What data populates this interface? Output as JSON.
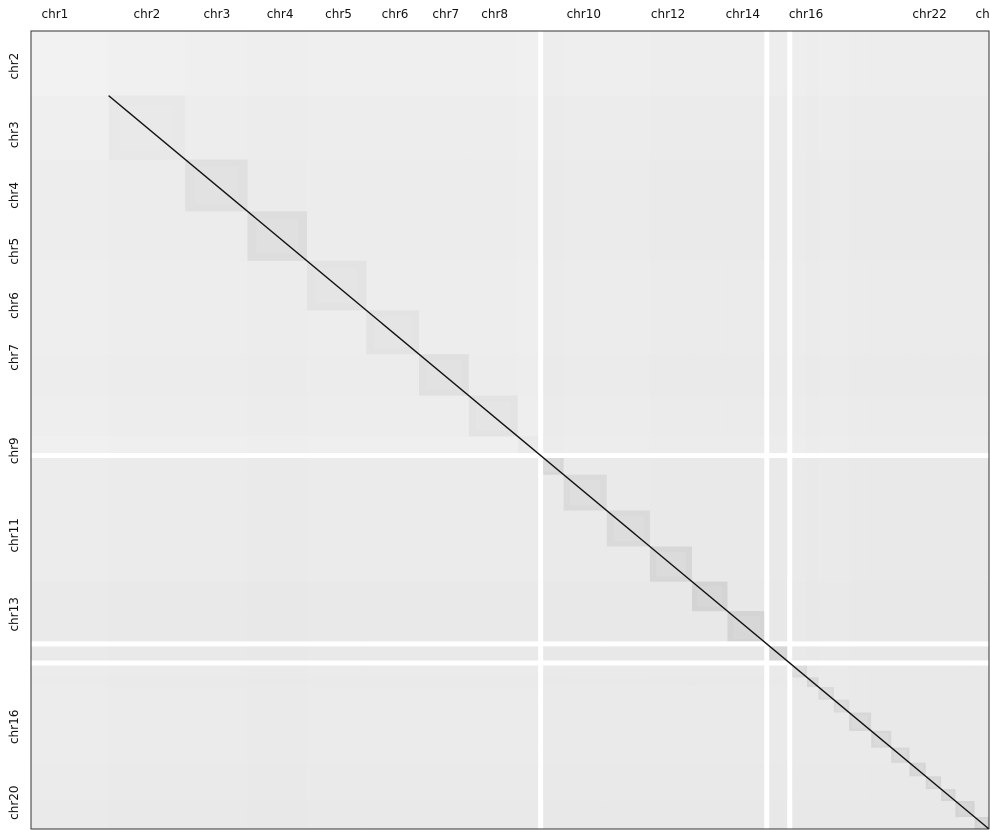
{
  "chart_data": {
    "type": "heatmap",
    "title": "",
    "colormap": {
      "low": "#ffffff",
      "high": "#000000",
      "name": "greys"
    },
    "top_labels": [
      {
        "label": "chr1",
        "pos": 0.025
      },
      {
        "label": "chr2",
        "pos": 0.121
      },
      {
        "label": "chr3",
        "pos": 0.194
      },
      {
        "label": "chr4",
        "pos": 0.26
      },
      {
        "label": "chr5",
        "pos": 0.321
      },
      {
        "label": "chr6",
        "pos": 0.38
      },
      {
        "label": "chr7",
        "pos": 0.433
      },
      {
        "label": "chr8",
        "pos": 0.484
      },
      {
        "label": "chr10",
        "pos": 0.577
      },
      {
        "label": "chr12",
        "pos": 0.665
      },
      {
        "label": "chr14",
        "pos": 0.743
      },
      {
        "label": "chr16",
        "pos": 0.809
      },
      {
        "label": "chr22",
        "pos": 0.938
      },
      {
        "label": "chr`",
        "pos": 0.999
      }
    ],
    "left_labels": [
      {
        "label": "chr2",
        "pos": 0.044
      },
      {
        "label": "chr3",
        "pos": 0.13
      },
      {
        "label": "chr4",
        "pos": 0.206
      },
      {
        "label": "chr5",
        "pos": 0.276
      },
      {
        "label": "chr6",
        "pos": 0.344
      },
      {
        "label": "chr7",
        "pos": 0.409
      },
      {
        "label": "chr9",
        "pos": 0.526
      },
      {
        "label": "chr11",
        "pos": 0.632
      },
      {
        "label": "chr13",
        "pos": 0.731
      },
      {
        "label": "chr16",
        "pos": 0.872
      },
      {
        "label": "chr20",
        "pos": 0.967
      }
    ],
    "diagonal_blocks": [
      {
        "start": 0.081,
        "end": 0.161,
        "intensity": 0.35
      },
      {
        "start": 0.161,
        "end": 0.226,
        "intensity": 0.55
      },
      {
        "start": 0.226,
        "end": 0.288,
        "intensity": 0.6
      },
      {
        "start": 0.288,
        "end": 0.35,
        "intensity": 0.45
      },
      {
        "start": 0.35,
        "end": 0.405,
        "intensity": 0.45
      },
      {
        "start": 0.405,
        "end": 0.457,
        "intensity": 0.55
      },
      {
        "start": 0.457,
        "end": 0.508,
        "intensity": 0.45
      },
      {
        "start": 0.508,
        "end": 0.532,
        "intensity": 0.3
      },
      {
        "start": 0.532,
        "end": 0.556,
        "intensity": 0.75
      },
      {
        "start": 0.556,
        "end": 0.601,
        "intensity": 0.65
      },
      {
        "start": 0.601,
        "end": 0.646,
        "intensity": 0.7
      },
      {
        "start": 0.646,
        "end": 0.69,
        "intensity": 0.75
      },
      {
        "start": 0.69,
        "end": 0.727,
        "intensity": 0.85
      },
      {
        "start": 0.727,
        "end": 0.768,
        "intensity": 0.85
      },
      {
        "start": 0.768,
        "end": 0.792,
        "intensity": 0.85
      },
      {
        "start": 0.792,
        "end": 0.81,
        "intensity": 0.7
      },
      {
        "start": 0.81,
        "end": 0.822,
        "intensity": 0.8
      },
      {
        "start": 0.822,
        "end": 0.838,
        "intensity": 0.7
      },
      {
        "start": 0.838,
        "end": 0.854,
        "intensity": 0.7
      },
      {
        "start": 0.854,
        "end": 0.877,
        "intensity": 0.75
      },
      {
        "start": 0.877,
        "end": 0.898,
        "intensity": 0.75
      },
      {
        "start": 0.898,
        "end": 0.917,
        "intensity": 0.75
      },
      {
        "start": 0.917,
        "end": 0.934,
        "intensity": 0.8
      },
      {
        "start": 0.934,
        "end": 0.95,
        "intensity": 0.8
      },
      {
        "start": 0.95,
        "end": 0.965,
        "intensity": 0.8
      },
      {
        "start": 0.965,
        "end": 0.985,
        "intensity": 0.85
      },
      {
        "start": 0.985,
        "end": 1.0,
        "intensity": 0.85
      }
    ],
    "background_intensity": 0.05,
    "grid": false
  }
}
